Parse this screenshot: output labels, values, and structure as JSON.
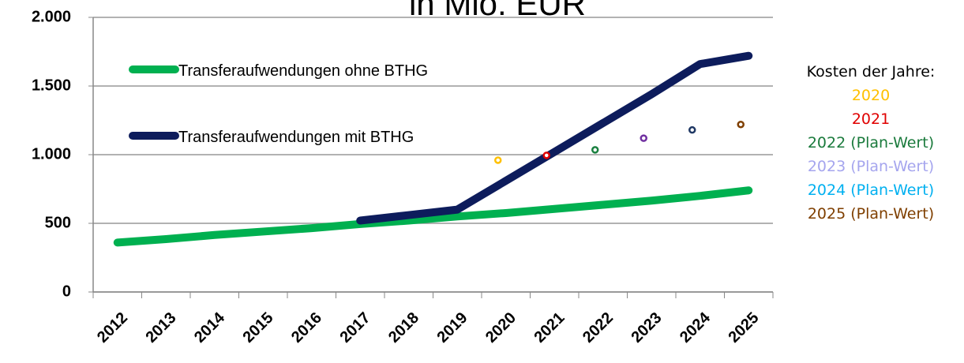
{
  "chart_data": {
    "type": "line",
    "title": "in Mio. EUR",
    "categories": [
      "2012",
      "2013",
      "2014",
      "2015",
      "2016",
      "2017",
      "2018",
      "2019",
      "2020",
      "2021",
      "2022",
      "2023",
      "2024",
      "2025"
    ],
    "series": [
      {
        "name": "Transferaufwendungen ohne BTHG",
        "color": "#00b050",
        "values": [
          360,
          385,
          415,
          440,
          465,
          495,
          520,
          550,
          575,
          605,
          635,
          665,
          700,
          740
        ]
      },
      {
        "name": "Transferaufwendungen mit BTHG",
        "color": "#0d1c5c",
        "values": [
          null,
          null,
          null,
          null,
          null,
          520,
          560,
          600,
          810,
          1020,
          1230,
          1440,
          1660,
          1720
        ]
      }
    ],
    "costs": {
      "title": "Kosten der Jahre:",
      "points": [
        {
          "category": 8,
          "label": "2020",
          "value": 960,
          "color": "#ffc000",
          "label_color": "#ffc000"
        },
        {
          "category": 9,
          "label": "2021",
          "value": 995,
          "color": "#e00000",
          "label_color": "#e00000"
        },
        {
          "category": 10,
          "label": "2022 (Plan-Wert)",
          "value": 1035,
          "color": "#1a8040",
          "label_color": "#1a7a3c"
        },
        {
          "category": 11,
          "label": "2023 (Plan-Wert)",
          "value": 1120,
          "color": "#7030a0",
          "label_color": "#a5a5ee"
        },
        {
          "category": 12,
          "label": "2024 (Plan-Wert)",
          "value": 1180,
          "color": "#1f3864",
          "label_color": "#00b0f0"
        },
        {
          "category": 13,
          "label": "2025 (Plan-Wert)",
          "value": 1220,
          "color": "#7f3f00",
          "label_color": "#7f3f00"
        }
      ]
    },
    "ylim": [
      0,
      2000
    ],
    "yticks": [
      {
        "value": 0,
        "label": "0"
      },
      {
        "value": 500,
        "label": "500"
      },
      {
        "value": 1000,
        "label": "1.000"
      },
      {
        "value": 1500,
        "label": "1.500"
      },
      {
        "value": 2000,
        "label": "2.000"
      }
    ],
    "grid": true
  }
}
